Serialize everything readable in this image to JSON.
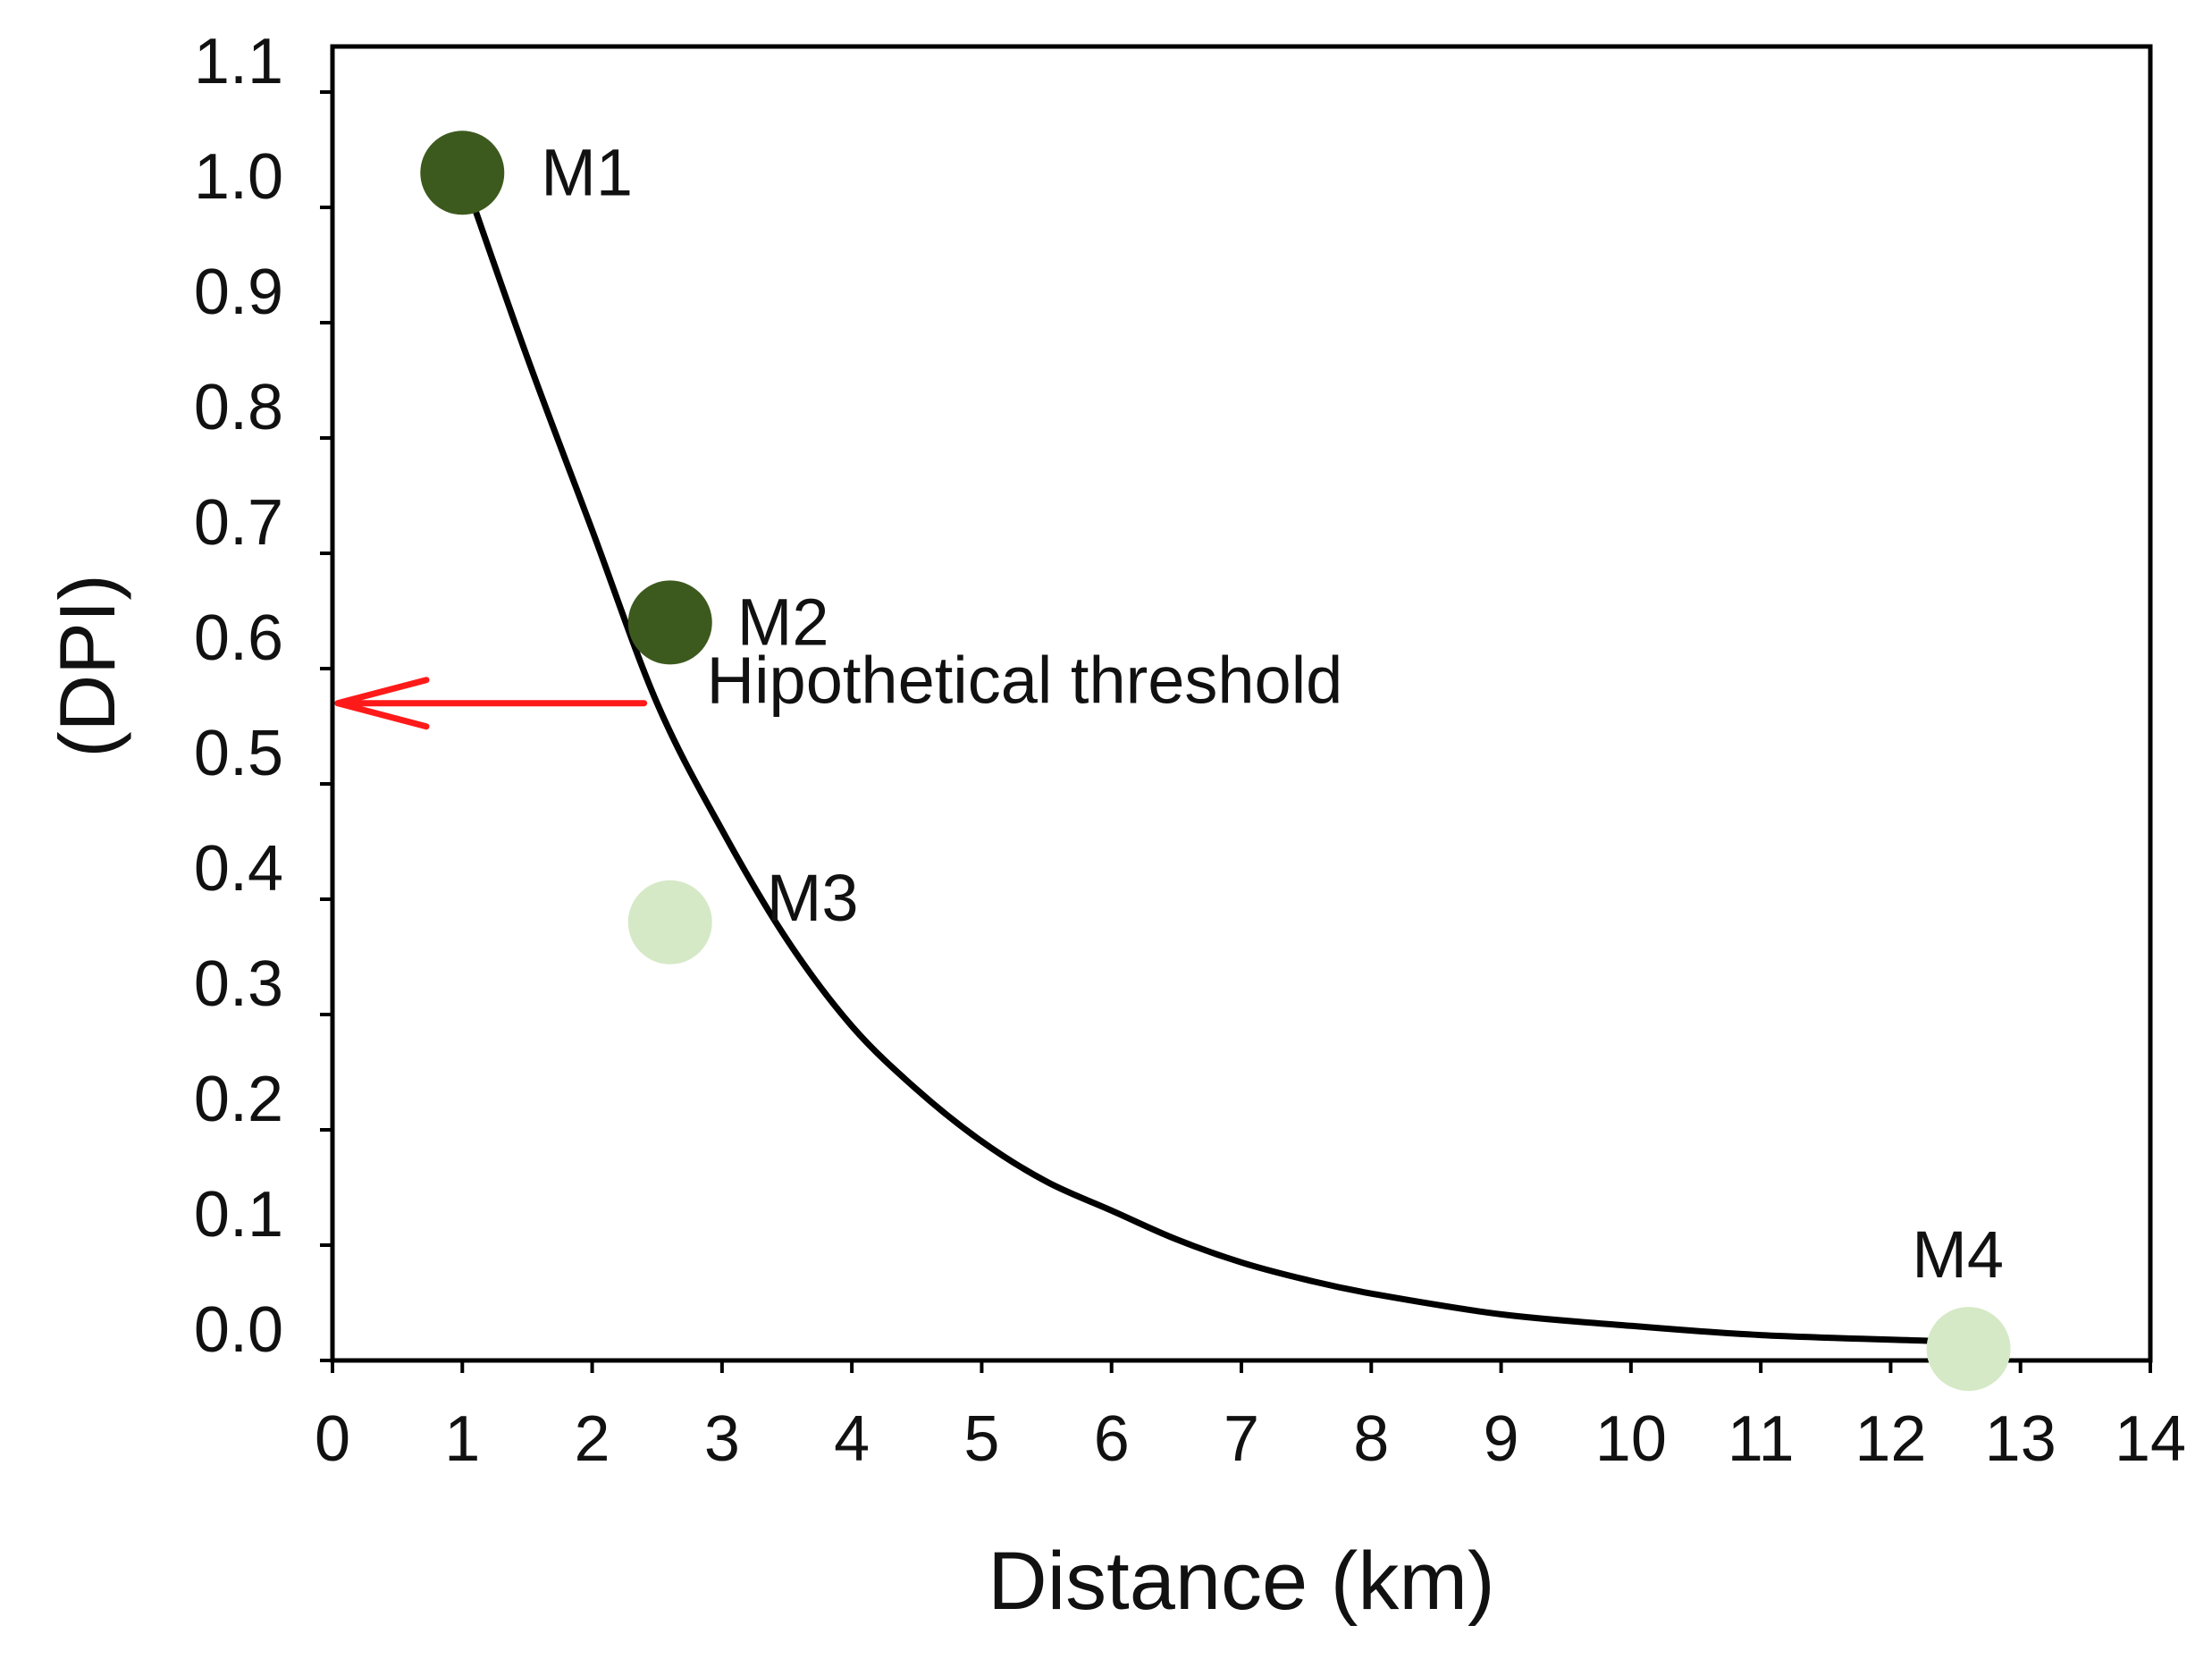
{
  "chart_data": {
    "type": "scatter",
    "title": "",
    "xlabel": "Distance (km)",
    "ylabel": "(DPI)",
    "xlim": [
      0,
      14
    ],
    "ylim": [
      0,
      1.1
    ],
    "x_ticks": [
      0,
      1,
      2,
      3,
      4,
      5,
      6,
      7,
      8,
      9,
      10,
      11,
      12,
      13,
      14
    ],
    "x_tick_labels": [
      "0",
      "1",
      "2",
      "3",
      "4",
      "5",
      "6",
      "7",
      "8",
      "9",
      "10",
      "11",
      "12",
      "13",
      "14"
    ],
    "y_ticks": [
      0,
      0.1,
      0.2,
      0.3,
      0.4,
      0.5,
      0.6,
      0.7,
      0.8,
      0.9,
      1.0,
      1.1
    ],
    "y_tick_labels": [
      "0.0",
      "0.1",
      "0.2",
      "0.3",
      "0.4",
      "0.5",
      "0.6",
      "0.7",
      "0.8",
      "0.9",
      "1.0",
      "1.1"
    ],
    "grid": false,
    "points": [
      {
        "name": "M1",
        "x": 1.0,
        "y": 1.03,
        "color": "#3d5a1e"
      },
      {
        "name": "M2",
        "x": 2.6,
        "y": 0.64,
        "color": "#3d5a1e"
      },
      {
        "name": "M3",
        "x": 2.6,
        "y": 0.38,
        "color": "#d5e9c6"
      },
      {
        "name": "M4",
        "x": 12.6,
        "y": 0.01,
        "color": "#d5e9c6"
      }
    ],
    "curve": {
      "description": "decay fit",
      "x": [
        1.0,
        1.5,
        2.0,
        2.5,
        3.0,
        3.5,
        4.0,
        4.5,
        5.0,
        5.5,
        6.0,
        6.5,
        7.0,
        7.5,
        8.0,
        9.0,
        10.0,
        11.0,
        12.3
      ],
      "y": [
        1.03,
        0.87,
        0.72,
        0.57,
        0.46,
        0.365,
        0.29,
        0.235,
        0.19,
        0.155,
        0.13,
        0.105,
        0.085,
        0.07,
        0.058,
        0.04,
        0.03,
        0.022,
        0.017
      ],
      "color": "#000000"
    },
    "annotations": [
      {
        "text": "Hipothetical threshold",
        "arrow_from_x": 2.4,
        "arrow_to_x": 0,
        "y": 0.57,
        "color": "#ff1a1a"
      }
    ]
  }
}
